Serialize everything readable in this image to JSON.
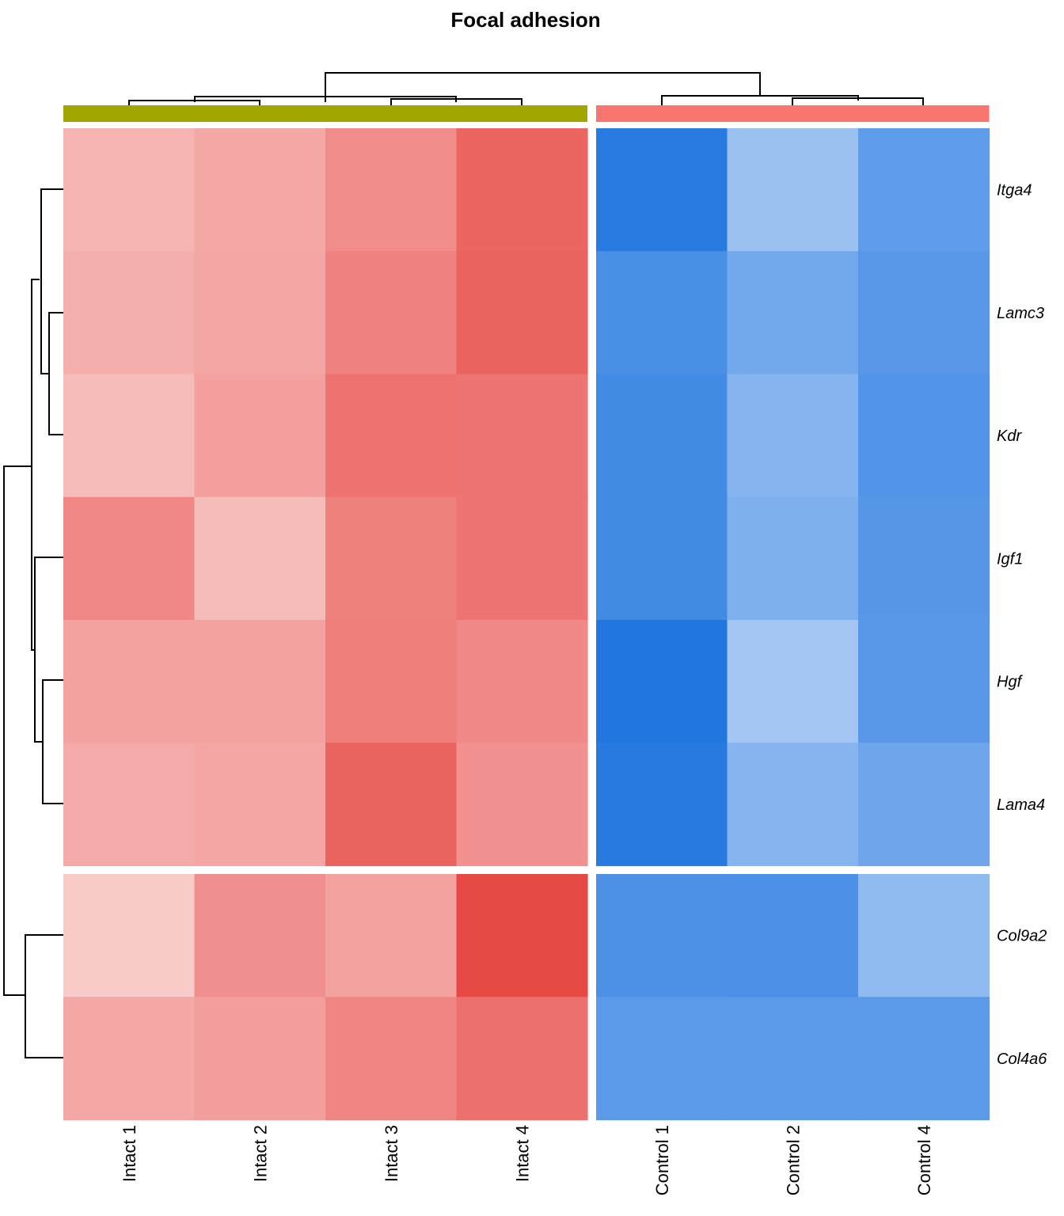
{
  "chart_data": {
    "type": "heatmap",
    "title": "Focal adhesion",
    "groups": [
      {
        "name": "Intact",
        "color": "#A3A500",
        "columns": [
          "Intact 1",
          "Intact 2",
          "Intact 3",
          "Intact 4"
        ]
      },
      {
        "name": "Control",
        "color": "#F8766D",
        "columns": [
          "Control 1",
          "Control 2",
          "Control 4"
        ]
      }
    ],
    "columns": [
      "Intact 1",
      "Intact 2",
      "Intact 3",
      "Intact 4",
      "Control 1",
      "Control 2",
      "Control 4"
    ],
    "row_clusters": [
      [
        "Itga4",
        "Lamc3",
        "Kdr",
        "Igf1",
        "Hgf",
        "Lama4"
      ],
      [
        "Col9a2",
        "Col4a6"
      ]
    ],
    "rows": [
      "Itga4",
      "Lamc3",
      "Kdr",
      "Igf1",
      "Hgf",
      "Lama4",
      "Col9a2",
      "Col4a6"
    ],
    "color_scale": {
      "low": "#2176E0",
      "mid": "#FFFFFF",
      "high": "#E53935",
      "range": [
        -1,
        1
      ]
    },
    "values": [
      [
        0.38,
        0.44,
        0.58,
        0.78,
        -0.96,
        -0.45,
        -0.72
      ],
      [
        0.41,
        0.45,
        0.63,
        0.79,
        -0.82,
        -0.64,
        -0.75
      ],
      [
        0.34,
        0.48,
        0.71,
        0.7,
        -0.85,
        -0.55,
        -0.78
      ],
      [
        0.6,
        0.34,
        0.64,
        0.7,
        -0.85,
        -0.58,
        -0.76
      ],
      [
        0.47,
        0.47,
        0.65,
        0.6,
        -1.0,
        -0.42,
        -0.75
      ],
      [
        0.43,
        0.45,
        0.79,
        0.55,
        -0.97,
        -0.55,
        -0.65
      ],
      [
        0.27,
        0.56,
        0.47,
        0.92,
        -0.8,
        -0.81,
        -0.5
      ],
      [
        0.44,
        0.49,
        0.61,
        0.72,
        -0.74,
        -0.74,
        -0.74
      ]
    ]
  }
}
